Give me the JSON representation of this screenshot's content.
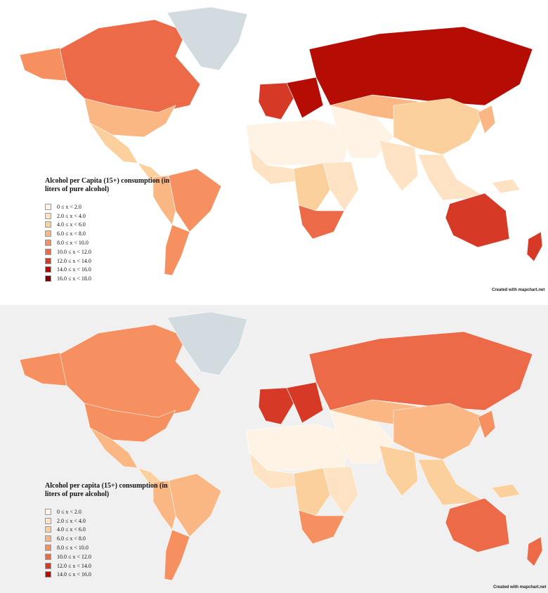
{
  "colors": {
    "c0": "#fef3e4",
    "c1": "#fde3c3",
    "c2": "#fcd09c",
    "c3": "#fbb783",
    "c4": "#f69060",
    "c5": "#ec6a48",
    "c6": "#d63a26",
    "c7": "#b50c03",
    "c8": "#7b0000",
    "nodata": "#d1dbe0"
  },
  "maps": [
    {
      "id": "top",
      "legend": {
        "title": "Alcohol per Capita (15+) consumption (in liters of pure alcohol)",
        "items": [
          {
            "label": "0 ≤ x < 2.0",
            "color": "#fef3e4"
          },
          {
            "label": "2.0 ≤ x < 4.0",
            "color": "#fde3c3"
          },
          {
            "label": "4.0 ≤ x < 6.0",
            "color": "#fcd09c"
          },
          {
            "label": "6.0 ≤ x < 8.0",
            "color": "#fbb783"
          },
          {
            "label": "8.0 ≤ x < 10.0",
            "color": "#f69060"
          },
          {
            "label": "10.0 ≤ x < 12.0",
            "color": "#ec6a48"
          },
          {
            "label": "12.0 ≤ x < 14.0",
            "color": "#d63a26"
          },
          {
            "label": "14.0 ≤ x < 16.0",
            "color": "#b50c03"
          },
          {
            "label": "16.0 ≤ x < 18.0",
            "color": "#7b0000"
          }
        ]
      },
      "credit": "Created with mapchart.net",
      "regions": {
        "north-america": "c5",
        "alaska": "c4",
        "greenland": "nodata",
        "usa": "c3",
        "mexico": "c2",
        "central-america": "c2",
        "brazil": "c4",
        "andean": "c3",
        "southern-cone": "c4",
        "western-europe": "c6",
        "eastern-europe": "c7",
        "russia": "c7",
        "north-africa": "c0",
        "west-africa": "c1",
        "central-africa": "c2",
        "east-africa": "c1",
        "southern-africa": "c5",
        "middle-east": "c0",
        "central-asia": "c3",
        "china": "c2",
        "india": "c1",
        "southeast-asia": "c1",
        "japan": "c3",
        "australia": "c6",
        "new-zealand": "c6",
        "islands": "c1"
      }
    },
    {
      "id": "bottom",
      "legend": {
        "title": "Alcohol per capita (15+) consumption (in liters of pure alcohol)",
        "items": [
          {
            "label": "0 ≤ x < 2.0",
            "color": "#fef3e4"
          },
          {
            "label": "2.0 ≤ x < 4.0",
            "color": "#fde3c3"
          },
          {
            "label": "4.0 ≤ x < 6.0",
            "color": "#fcd09c"
          },
          {
            "label": "6.0 ≤ x < 8.0",
            "color": "#fbb783"
          },
          {
            "label": "8.0 ≤ x < 10.0",
            "color": "#f69060"
          },
          {
            "label": "10.0 ≤ x < 12.0",
            "color": "#ec6a48"
          },
          {
            "label": "12.0 ≤ x < 14.0",
            "color": "#d63a26"
          },
          {
            "label": "14.0 ≤ x < 16.0",
            "color": "#b50c03"
          }
        ]
      },
      "credit": "Created with mapchart.net",
      "regions": {
        "north-america": "c4",
        "alaska": "c4",
        "greenland": "nodata",
        "usa": "c4",
        "mexico": "c3",
        "central-america": "c2",
        "brazil": "c3",
        "andean": "c3",
        "southern-cone": "c4",
        "western-europe": "c6",
        "eastern-europe": "c6",
        "russia": "c5",
        "north-africa": "c0",
        "west-africa": "c1",
        "central-africa": "c2",
        "east-africa": "c1",
        "southern-africa": "c4",
        "middle-east": "c0",
        "central-asia": "c3",
        "china": "c3",
        "india": "c2",
        "southeast-asia": "c2",
        "japan": "c4",
        "australia": "c5",
        "new-zealand": "c5",
        "islands": "c2"
      }
    }
  ]
}
